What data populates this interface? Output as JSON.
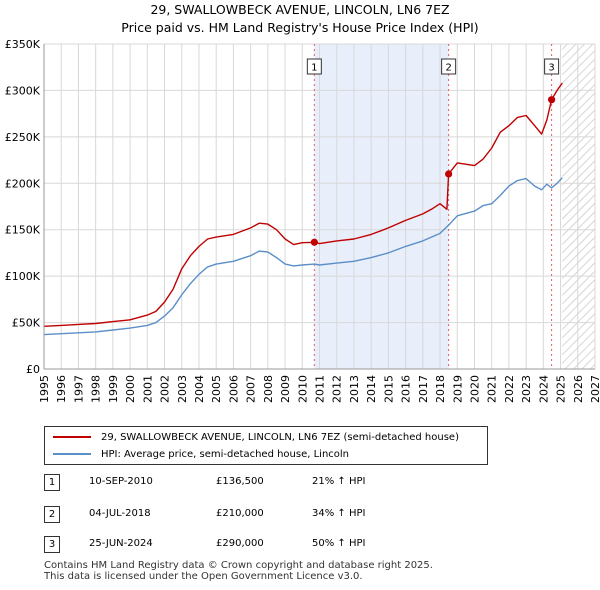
{
  "header": {
    "title_line1": "29, SWALLOWBECK AVENUE, LINCOLN, LN6 7EZ",
    "title_line2": "Price paid vs. HM Land Registry's House Price Index (HPI)"
  },
  "colors": {
    "price_line": "#c00000",
    "hpi_line": "#5b8fc8",
    "shade": "#e8eefa",
    "marker": "#c00000",
    "grid": "#d8d8d8",
    "event_line": "#e06060"
  },
  "chart_data": {
    "type": "line",
    "title": "Price paid vs. HM Land Registry's House Price Index (HPI)",
    "xlim": [
      1995,
      2027
    ],
    "ylim": [
      0,
      350000
    ],
    "x_ticks": [
      "1995",
      "1996",
      "1997",
      "1998",
      "1999",
      "2000",
      "2001",
      "2002",
      "2003",
      "2004",
      "2005",
      "2006",
      "2007",
      "2008",
      "2009",
      "2010",
      "2011",
      "2012",
      "2013",
      "2014",
      "2015",
      "2016",
      "2017",
      "2018",
      "2019",
      "2020",
      "2021",
      "2022",
      "2023",
      "2024",
      "2025",
      "2026",
      "2027"
    ],
    "y_ticks": [
      {
        "value": 0,
        "label": "£0"
      },
      {
        "value": 50000,
        "label": "£50K"
      },
      {
        "value": 100000,
        "label": "£100K"
      },
      {
        "value": 150000,
        "label": "£150K"
      },
      {
        "value": 200000,
        "label": "£200K"
      },
      {
        "value": 250000,
        "label": "£250K"
      },
      {
        "value": 300000,
        "label": "£300K"
      },
      {
        "value": 350000,
        "label": "£350K"
      }
    ],
    "shaded_period": [
      2010.7,
      2018.5
    ],
    "future_hatch_from": 2025.1,
    "events": [
      {
        "label": "1",
        "x": 2010.7,
        "value": 136500
      },
      {
        "label": "2",
        "x": 2018.5,
        "value": 210000
      },
      {
        "label": "3",
        "x": 2024.48,
        "value": 290000
      }
    ],
    "series": [
      {
        "name": "29, SWALLOWBECK AVENUE, LINCOLN, LN6 7EZ (semi-detached house)",
        "x": [
          1995,
          1996,
          1997,
          1998,
          1999,
          2000,
          2001,
          2001.5,
          2002,
          2002.5,
          2003,
          2003.5,
          2004,
          2004.5,
          2005,
          2006,
          2007,
          2007.5,
          2008,
          2008.5,
          2009,
          2009.5,
          2010,
          2010.7,
          2011,
          2012,
          2013,
          2014,
          2015,
          2016,
          2017,
          2017.5,
          2018,
          2018.4,
          2018.5,
          2019,
          2020,
          2020.5,
          2021,
          2021.5,
          2022,
          2022.5,
          2023,
          2023.5,
          2023.9,
          2024.2,
          2024.48,
          2024.8,
          2025.1
        ],
        "values": [
          46000,
          47000,
          48000,
          49000,
          51000,
          53000,
          58000,
          62000,
          72000,
          86000,
          108000,
          122000,
          132000,
          140000,
          142000,
          145000,
          152000,
          157000,
          156000,
          150000,
          140000,
          134000,
          136000,
          136500,
          135000,
          138000,
          140000,
          145000,
          152000,
          160000,
          167000,
          172000,
          178000,
          172000,
          210000,
          222000,
          219000,
          226000,
          238000,
          255000,
          262000,
          271000,
          273000,
          262000,
          253000,
          268000,
          290000,
          300000,
          308000
        ]
      },
      {
        "name": "HPI: Average price, semi-detached house, Lincoln",
        "x": [
          1995,
          1996,
          1997,
          1998,
          1999,
          2000,
          2001,
          2001.5,
          2002,
          2002.5,
          2003,
          2003.5,
          2004,
          2004.5,
          2005,
          2006,
          2007,
          2007.5,
          2008,
          2008.5,
          2009,
          2009.5,
          2010,
          2010.7,
          2011,
          2012,
          2013,
          2014,
          2015,
          2016,
          2017,
          2017.5,
          2018,
          2018.5,
          2019,
          2020,
          2020.5,
          2021,
          2021.5,
          2022,
          2022.5,
          2023,
          2023.5,
          2023.9,
          2024.2,
          2024.48,
          2024.8,
          2025.1
        ],
        "values": [
          37000,
          38000,
          39000,
          40000,
          42000,
          44000,
          47000,
          50000,
          57000,
          66000,
          80000,
          92000,
          102000,
          110000,
          113000,
          116000,
          122000,
          127000,
          126000,
          120000,
          113000,
          111000,
          112000,
          113000,
          112000,
          114000,
          116000,
          120000,
          125000,
          132000,
          138000,
          142000,
          146000,
          155000,
          165000,
          170000,
          176000,
          178000,
          187000,
          197000,
          203000,
          205000,
          197000,
          193000,
          199000,
          195000,
          200000,
          206000
        ]
      }
    ]
  },
  "legend": {
    "price_label": "29, SWALLOWBECK AVENUE, LINCOLN, LN6 7EZ (semi-detached house)",
    "hpi_label": "HPI: Average price, semi-detached house, Lincoln"
  },
  "transactions": [
    {
      "num": "1",
      "date": "10-SEP-2010",
      "price": "£136,500",
      "hpi": "21% ↑ HPI"
    },
    {
      "num": "2",
      "date": "04-JUL-2018",
      "price": "£210,000",
      "hpi": "34% ↑ HPI"
    },
    {
      "num": "3",
      "date": "25-JUN-2024",
      "price": "£290,000",
      "hpi": "50% ↑ HPI"
    }
  ],
  "footer": {
    "line1": "Contains HM Land Registry data © Crown copyright and database right 2025.",
    "line2": "This data is licensed under the Open Government Licence v3.0."
  }
}
